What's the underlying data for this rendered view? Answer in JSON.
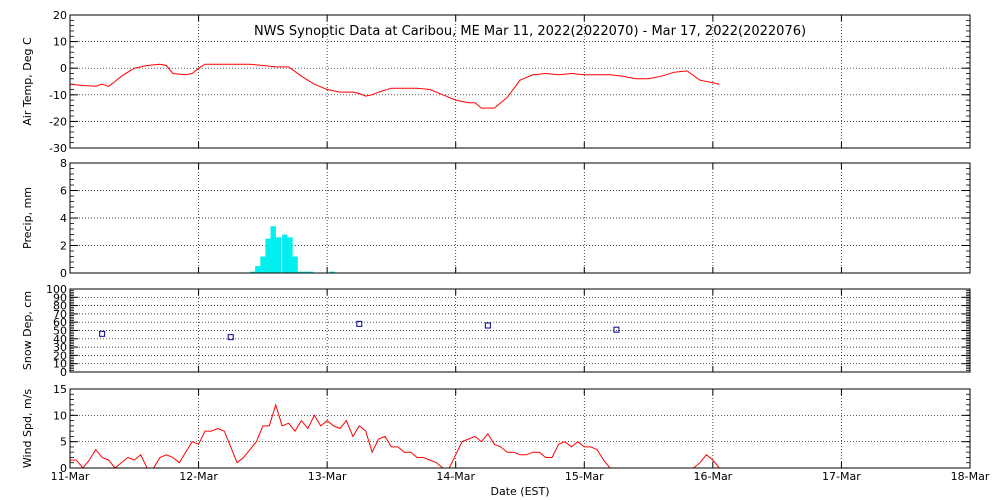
{
  "title": "NWS Synoptic Data at Caribou, ME   Mar 11, 2022(2022070) - Mar 17, 2022(2022076)",
  "xlabel": "Date (EST)",
  "x_tick_labels": [
    "11-Mar",
    "12-Mar",
    "13-Mar",
    "14-Mar",
    "15-Mar",
    "16-Mar",
    "17-Mar",
    "18-Mar"
  ],
  "colors": {
    "line": "#ff0000",
    "precip": "#00f0f0",
    "snow_marker": "#00008b",
    "axis": "#000000"
  },
  "chart_data": [
    {
      "id": "air_temp",
      "type": "line",
      "ylabel": "Air Temp, Deg C",
      "ylim": [
        -30,
        20
      ],
      "yticks": [
        -30,
        -20,
        -10,
        0,
        10,
        20
      ],
      "x_unit": "days since 11-Mar 00:00 EST",
      "series": [
        {
          "x": [
            0,
            0.1,
            0.2,
            0.25,
            0.3,
            0.35,
            0.4,
            0.5,
            0.6,
            0.7,
            0.75,
            0.8,
            0.9,
            0.95,
            1.0,
            1.05,
            1.1,
            1.15,
            1.2,
            1.3,
            1.4,
            1.5,
            1.6,
            1.7,
            1.8,
            1.9,
            2.0,
            2.05,
            2.1,
            2.2,
            2.25,
            2.3,
            2.35,
            2.4,
            2.5,
            2.6,
            2.7,
            2.8,
            2.9,
            3.0,
            3.1,
            3.15,
            3.2,
            3.25,
            3.3,
            3.4,
            3.5,
            3.6,
            3.7,
            3.8,
            3.9,
            4.0,
            4.1,
            4.2,
            4.3,
            4.4,
            4.5,
            4.6,
            4.7,
            4.8,
            4.9,
            5.0,
            5.05
          ],
          "y": [
            -6,
            -6.5,
            -6.8,
            -6,
            -6.8,
            -5,
            -3,
            0,
            1,
            1.5,
            1,
            -2,
            -2.5,
            -2,
            0,
            1.5,
            1.5,
            1.5,
            1.5,
            1.5,
            1.5,
            1,
            0.5,
            0.5,
            -3,
            -6,
            -8,
            -8.5,
            -9,
            -9,
            -9.5,
            -10.5,
            -10,
            -9,
            -7.5,
            -7.5,
            -7.5,
            -8,
            -10,
            -12,
            -13,
            -13,
            -15,
            -15,
            -15,
            -11,
            -4.5,
            -2.5,
            -2,
            -2.5,
            -2,
            -2.5,
            -2.5,
            -2.5,
            -3,
            -4,
            -4,
            -3,
            -1.5,
            -1,
            -4.5,
            -5.5,
            -6
          ]
        }
      ]
    },
    {
      "id": "precip",
      "type": "bar",
      "ylabel": "Precip, mm",
      "ylim": [
        0,
        8
      ],
      "yticks": [
        0,
        2,
        4,
        6,
        8
      ],
      "bar_width_days": 0.0417,
      "x": [
        1.4,
        1.44,
        1.48,
        1.52,
        1.56,
        1.6,
        1.65,
        1.69,
        1.73,
        1.77,
        1.81,
        1.85,
        1.9,
        1.94,
        2.02
      ],
      "values": [
        0.1,
        0.5,
        1.2,
        2.5,
        3.4,
        2.6,
        2.8,
        2.6,
        1.2,
        0.1,
        0.1,
        0.1,
        0,
        0,
        0.1
      ]
    },
    {
      "id": "snow_depth",
      "type": "scatter",
      "ylabel": "Snow Dep, cm",
      "ylim": [
        0,
        100
      ],
      "yticks": [
        0,
        10,
        20,
        30,
        40,
        50,
        60,
        70,
        80,
        90,
        100
      ],
      "x": [
        0.25,
        1.25,
        2.25,
        3.25,
        4.25
      ],
      "values": [
        46,
        42,
        58,
        56,
        51
      ]
    },
    {
      "id": "wind_speed",
      "type": "line",
      "ylabel": "Wind Spd, m/s",
      "ylim": [
        0,
        15
      ],
      "yticks": [
        0,
        5,
        10,
        15
      ],
      "series": [
        {
          "x": [
            0,
            0.05,
            0.1,
            0.15,
            0.2,
            0.25,
            0.3,
            0.35,
            0.4,
            0.45,
            0.5,
            0.55,
            0.6,
            0.65,
            0.7,
            0.75,
            0.8,
            0.85,
            0.9,
            0.95,
            1.0,
            1.05,
            1.1,
            1.15,
            1.2,
            1.25,
            1.3,
            1.35,
            1.4,
            1.45,
            1.5,
            1.55,
            1.6,
            1.65,
            1.7,
            1.75,
            1.8,
            1.85,
            1.9,
            1.95,
            2.0,
            2.05,
            2.1,
            2.15,
            2.2,
            2.25,
            2.3,
            2.35,
            2.4,
            2.45,
            2.5,
            2.55,
            2.6,
            2.65,
            2.7,
            2.75,
            2.8,
            2.85,
            2.9,
            2.95,
            3.0,
            3.05,
            3.1,
            3.15,
            3.2,
            3.25,
            3.3,
            3.35,
            3.4,
            3.45,
            3.5,
            3.55,
            3.6,
            3.65,
            3.7,
            3.75,
            3.8,
            3.85,
            3.9,
            3.95,
            4.0,
            4.05,
            4.1,
            4.15,
            4.2,
            4.25,
            4.3,
            4.35,
            4.4,
            4.45,
            4.5,
            4.55,
            4.6,
            4.65,
            4.7,
            4.75,
            4.8,
            4.85,
            4.9,
            4.95,
            5.0,
            5.05
          ],
          "y": [
            1.5,
            1.5,
            0,
            1.5,
            3.5,
            2,
            1.5,
            0,
            1,
            2,
            1.5,
            2.5,
            0,
            0,
            2,
            2.5,
            2,
            1,
            3,
            5,
            4.5,
            7,
            7,
            7.5,
            7,
            4,
            1,
            2,
            3.5,
            5,
            8,
            8,
            12,
            8,
            8.5,
            7,
            9,
            7.5,
            10,
            8,
            9,
            8,
            7.5,
            9,
            6,
            8,
            7,
            3,
            5.5,
            6,
            4,
            4,
            3,
            3,
            2,
            2,
            1.5,
            1,
            0,
            0,
            2.5,
            5,
            5.5,
            6,
            5,
            6.5,
            4.5,
            4,
            3,
            3,
            2.5,
            2.5,
            3,
            3,
            2,
            2,
            4.5,
            5,
            4,
            5,
            4,
            4,
            3.5,
            1.5,
            0,
            0,
            0,
            0,
            0,
            0,
            0,
            0,
            0,
            0,
            0,
            0,
            0,
            0,
            1,
            2.5,
            1.5,
            0
          ]
        }
      ]
    }
  ]
}
